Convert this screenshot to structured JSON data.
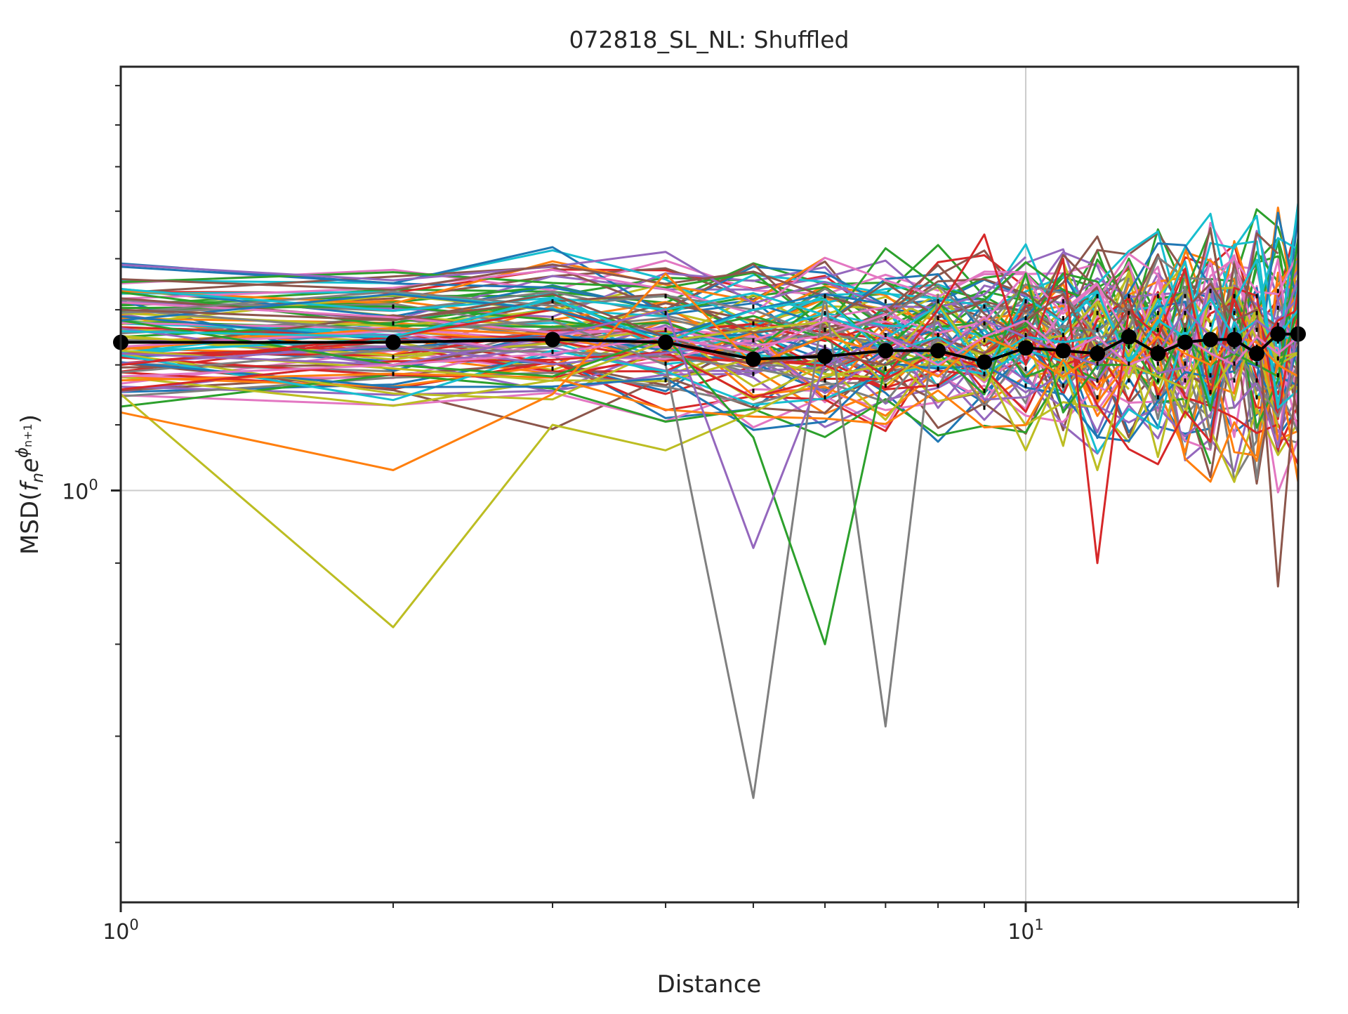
{
  "chart_data": {
    "type": "line",
    "title": "072818_SL_NL: Shuffled",
    "xlabel": "Distance",
    "ylabel_parts": {
      "prefix": "MSD(",
      "f": "f",
      "n": "n",
      "e": "e",
      "phi": "ϕ",
      "sub": "n+1",
      "suffix": ")"
    },
    "xscale": "log",
    "yscale": "log",
    "xlim": [
      1,
      20
    ],
    "ylim": [
      0.55,
      1.85
    ],
    "grid": true,
    "legend": "none",
    "x_ticks_major": [
      {
        "value": 1,
        "base": "10",
        "exp": "0"
      },
      {
        "value": 10,
        "base": "10",
        "exp": "1"
      }
    ],
    "y_ticks_major": [
      {
        "value": 1,
        "base": "10",
        "exp": "0"
      }
    ],
    "x": [
      1,
      2,
      3,
      4,
      5,
      6,
      7,
      8,
      9,
      10,
      11,
      12,
      13,
      14,
      15,
      16,
      17,
      18,
      19,
      20
    ],
    "mean_series": {
      "color": "#000000",
      "values": [
        1.24,
        1.24,
        1.245,
        1.24,
        1.21,
        1.215,
        1.225,
        1.225,
        1.205,
        1.23,
        1.225,
        1.22,
        1.25,
        1.22,
        1.24,
        1.245,
        1.245,
        1.22,
        1.255,
        1.255
      ]
    },
    "mean_err_upper": [
      1.3,
      1.31,
      1.32,
      1.33,
      1.31,
      1.33,
      1.32,
      1.32,
      1.31,
      1.32,
      1.32,
      1.33,
      1.33,
      1.33,
      1.33,
      1.34,
      1.33,
      1.33,
      1.34,
      1.33
    ],
    "mean_err_lower": [
      1.18,
      1.18,
      1.19,
      1.17,
      1.13,
      1.14,
      1.15,
      1.15,
      1.12,
      1.14,
      1.14,
      1.13,
      1.15,
      1.14,
      1.15,
      1.15,
      1.15,
      1.13,
      1.16,
      1.16
    ],
    "background_series_palette": [
      "#1f77b4",
      "#ff7f0e",
      "#2ca02c",
      "#d62728",
      "#9467bd",
      "#8c564b",
      "#e377c2",
      "#7f7f7f",
      "#bcbd22",
      "#17becf"
    ],
    "background_series_count": 90,
    "highlighted_series": [
      {
        "color": "#bcbd22",
        "values": [
          1.15,
          0.82,
          1.1,
          1.06,
          1.12,
          1.18,
          1.2,
          1.31,
          1.2,
          1.06,
          1.2,
          1.03,
          1.2,
          1.18,
          1.16,
          1.25,
          1.14,
          1.3,
          1.2,
          1.22
        ]
      },
      {
        "color": "#7f7f7f",
        "values": [
          1.3,
          1.26,
          1.28,
          1.2,
          0.64,
          1.33,
          0.71,
          1.33
        ]
      },
      {
        "color": "#2ca02c",
        "values": [
          1.28,
          1.2,
          1.18,
          1.25,
          1.08,
          0.8,
          1.2,
          1.22,
          1.15,
          1.37,
          1.12,
          1.2,
          1.2,
          1.22,
          1.25,
          1.2,
          1.22,
          1.2,
          1.18,
          1.3
        ]
      },
      {
        "color": "#d62728",
        "values": [
          1.2,
          1.25,
          1.3,
          1.24,
          1.2,
          1.25,
          1.18,
          1.3,
          1.45,
          1.2,
          1.4,
          0.9,
          1.3,
          1.25,
          1.38,
          1.15,
          1.32,
          1.22,
          1.28,
          1.3
        ]
      },
      {
        "color": "#1f77b4",
        "values": [
          1.28,
          1.33,
          1.3,
          1.25,
          1.3,
          1.33,
          1.31
        ]
      },
      {
        "color": "#8c564b",
        "values": [
          1.3,
          1.28,
          1.33,
          1.25,
          1.2,
          1.22,
          1.2,
          1.25,
          1.22,
          1.28,
          1.33,
          1.22,
          1.3,
          1.22,
          1.3,
          1.35,
          1.28,
          1.3,
          0.87,
          1.22
        ]
      },
      {
        "color": "#17becf",
        "values": [
          1.26,
          1.25,
          1.32,
          1.24,
          1.3,
          1.32,
          1.22,
          1.25,
          1.2,
          1.25,
          1.24,
          1.25,
          1.2,
          1.28,
          1.25,
          1.32,
          1.25,
          1.28,
          1.25,
          1.3
        ]
      },
      {
        "color": "#ff7f0e",
        "values": [
          1.12,
          1.03,
          1.15,
          1.37,
          1.2,
          1.25,
          1.22,
          1.18,
          1.25,
          1.22,
          1.18,
          1.22,
          1.2,
          1.25,
          1.22,
          1.2,
          1.25,
          1.24,
          1.2,
          1.18
        ]
      },
      {
        "color": "#9467bd",
        "values": [
          1.22,
          1.2,
          1.25,
          1.3,
          0.92,
          1.2,
          1.25,
          1.22,
          1.28,
          1.25,
          1.22,
          1.2,
          1.25,
          1.22,
          1.3,
          1.25,
          1.22,
          1.28,
          1.25,
          1.36
        ]
      },
      {
        "color": "#e377c2",
        "values": [
          1.18,
          1.2,
          1.22,
          1.25,
          1.22,
          1.28,
          1.25,
          1.2,
          1.25,
          1.28,
          1.22,
          1.25,
          1.2,
          1.22,
          1.25,
          1.22,
          1.2,
          1.25,
          1.22,
          1.25
        ]
      }
    ]
  }
}
